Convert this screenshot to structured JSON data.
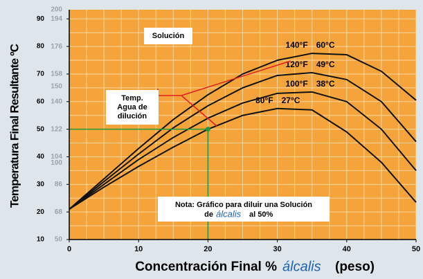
{
  "chart_data": {
    "type": "line",
    "y_title": "Temperatura Final Resultante ºC",
    "x_title": "Concentración Final %",
    "x_title_brand": "álcalis",
    "x_title_suffix": "(peso)",
    "x": [
      0,
      5,
      10,
      15,
      20,
      25,
      30,
      35,
      40,
      45,
      50
    ],
    "xlim": [
      0,
      50
    ],
    "xticks": [
      0,
      10,
      20,
      30,
      40,
      50
    ],
    "ylim": [
      10,
      93.33
    ],
    "yticks": [
      10,
      20,
      30,
      40,
      50,
      60,
      70,
      80,
      90
    ],
    "y2lim": [
      50,
      200
    ],
    "y2ticks": [
      50,
      68,
      86,
      100,
      104,
      122,
      140,
      150,
      158,
      176,
      194,
      200
    ],
    "grid": true,
    "xgrid": [
      0,
      2.5,
      5,
      7.5,
      10,
      12.5,
      15,
      17.5,
      20,
      22.5,
      25,
      27.5,
      30,
      32.5,
      35,
      37.5,
      40,
      42.5,
      45,
      47.5,
      50
    ],
    "ygrid": [
      10,
      15,
      20,
      25,
      30,
      35,
      40,
      45,
      50,
      55,
      60,
      65,
      70,
      75,
      80,
      85,
      90
    ],
    "background_color": "#f4a43a",
    "series": [
      {
        "name": "80°F",
        "celsius": "27°C",
        "color": "#111111",
        "values": [
          21,
          29,
          36.5,
          43.5,
          50,
          55,
          57.5,
          57,
          49,
          38,
          23.5
        ]
      },
      {
        "name": "100°F",
        "celsius": "38°C",
        "color": "#111111",
        "values": [
          21,
          30,
          39,
          47,
          54,
          59.5,
          63,
          63.5,
          60,
          50,
          35
        ]
      },
      {
        "name": "120°F",
        "celsius": "49°C",
        "color": "#111111",
        "values": [
          21,
          31,
          41,
          50.5,
          58.5,
          65,
          69.5,
          70.5,
          68,
          60,
          45.5
        ]
      },
      {
        "name": "140°F",
        "celsius": "60°C",
        "color": "#111111",
        "values": [
          21,
          32,
          43,
          53.5,
          62.5,
          70,
          75,
          77.5,
          77,
          71,
          60.5
        ]
      }
    ],
    "point": {
      "x": 20,
      "y": 50,
      "color": "#1e9a3c"
    },
    "label_solution": "Solución",
    "label_temp": [
      "Temp.",
      "Agua de",
      "dilución"
    ],
    "note": [
      "Nota: Gráfico para diluir una Solución",
      "de",
      "álcalis",
      "al 50%"
    ]
  }
}
